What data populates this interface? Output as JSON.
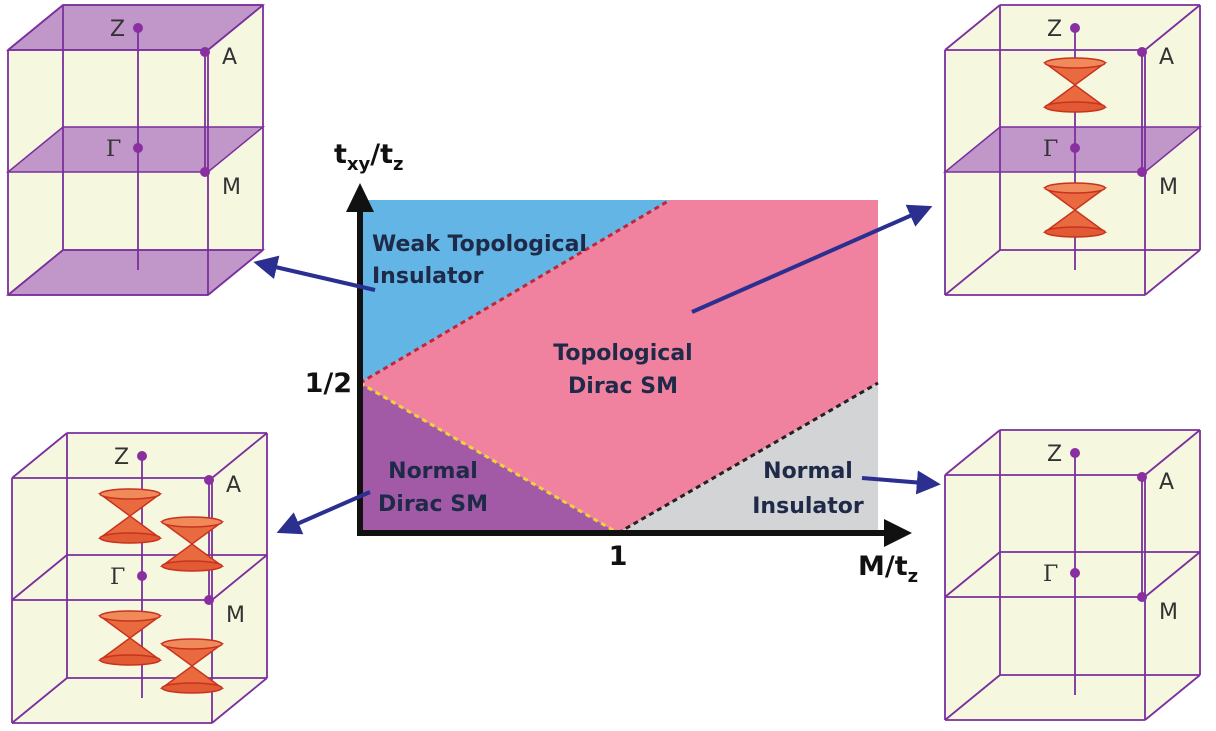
{
  "y_axis_label": [
    "t",
    "xy",
    "/t",
    "z"
  ],
  "x_axis_label": [
    "M/t",
    "z"
  ],
  "y_tick": "1/2",
  "x_tick": "1",
  "regions": {
    "weak_ti": [
      "Weak Topological",
      "Insulator"
    ],
    "topological_dirac": [
      "Topological",
      "Dirac SM"
    ],
    "normal_dirac": [
      "Normal",
      "Dirac SM"
    ],
    "normal_insulator": [
      "Normal",
      "Insulator"
    ]
  },
  "cubes": [
    {
      "labels": [
        "Z",
        "A",
        "Γ",
        "M"
      ]
    },
    {
      "labels": [
        "Z",
        "A",
        "Γ",
        "M"
      ]
    },
    {
      "labels": [
        "Z",
        "A",
        "Γ",
        "M"
      ]
    },
    {
      "labels": [
        "Z",
        "A",
        "Γ",
        "M"
      ]
    }
  ]
}
